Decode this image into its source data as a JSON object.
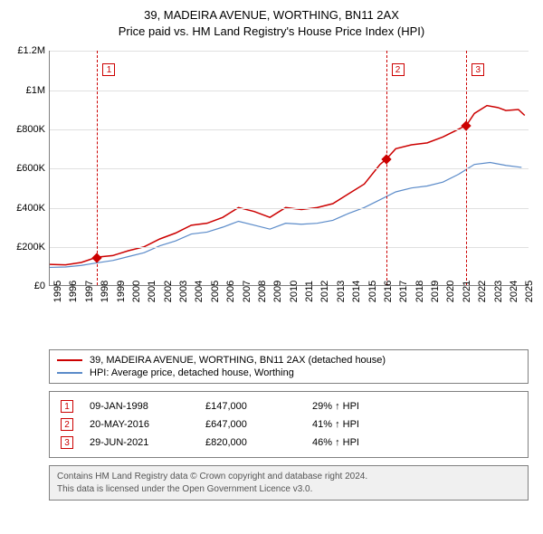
{
  "title": {
    "line1": "39, MADEIRA AVENUE, WORTHING, BN11 2AX",
    "line2": "Price paid vs. HM Land Registry's House Price Index (HPI)"
  },
  "chart": {
    "type": "line",
    "xlim": [
      1995,
      2025.5
    ],
    "ylim": [
      0,
      1200000
    ],
    "ytick_step": 200000,
    "ytick_labels": [
      "£0",
      "£200K",
      "£400K",
      "£600K",
      "£800K",
      "£1M",
      "£1.2M"
    ],
    "xticks": [
      1995,
      1996,
      1997,
      1998,
      1999,
      2000,
      2001,
      2002,
      2003,
      2004,
      2005,
      2006,
      2007,
      2008,
      2009,
      2010,
      2011,
      2012,
      2013,
      2014,
      2015,
      2016,
      2017,
      2018,
      2019,
      2020,
      2021,
      2022,
      2023,
      2024,
      2025
    ],
    "grid_color": "#e0e0e0",
    "axis_color": "#808080",
    "background_color": "#ffffff",
    "label_fontsize": 11,
    "series": [
      {
        "name": "price_paid",
        "label": "39, MADEIRA AVENUE, WORTHING, BN11 2AX (detached house)",
        "color": "#cc0000",
        "line_width": 1.5,
        "points": [
          [
            1995,
            110000
          ],
          [
            1996,
            108000
          ],
          [
            1997,
            120000
          ],
          [
            1998,
            147000
          ],
          [
            1999,
            155000
          ],
          [
            2000,
            180000
          ],
          [
            2001,
            200000
          ],
          [
            2002,
            240000
          ],
          [
            2003,
            270000
          ],
          [
            2004,
            310000
          ],
          [
            2005,
            320000
          ],
          [
            2006,
            350000
          ],
          [
            2007,
            400000
          ],
          [
            2008,
            380000
          ],
          [
            2009,
            350000
          ],
          [
            2010,
            400000
          ],
          [
            2011,
            390000
          ],
          [
            2012,
            400000
          ],
          [
            2013,
            420000
          ],
          [
            2014,
            470000
          ],
          [
            2015,
            520000
          ],
          [
            2016,
            620000
          ],
          [
            2016.4,
            647000
          ],
          [
            2017,
            700000
          ],
          [
            2018,
            720000
          ],
          [
            2019,
            730000
          ],
          [
            2020,
            760000
          ],
          [
            2021,
            800000
          ],
          [
            2021.5,
            820000
          ],
          [
            2022,
            880000
          ],
          [
            2022.8,
            920000
          ],
          [
            2023.5,
            910000
          ],
          [
            2024,
            895000
          ],
          [
            2024.8,
            900000
          ],
          [
            2025.2,
            870000
          ]
        ]
      },
      {
        "name": "hpi",
        "label": "HPI: Average price, detached house, Worthing",
        "color": "#5b8bc9",
        "line_width": 1.2,
        "points": [
          [
            1995,
            95000
          ],
          [
            1996,
            97000
          ],
          [
            1997,
            105000
          ],
          [
            1998,
            118000
          ],
          [
            1999,
            130000
          ],
          [
            2000,
            150000
          ],
          [
            2001,
            170000
          ],
          [
            2002,
            205000
          ],
          [
            2003,
            230000
          ],
          [
            2004,
            265000
          ],
          [
            2005,
            275000
          ],
          [
            2006,
            300000
          ],
          [
            2007,
            330000
          ],
          [
            2008,
            310000
          ],
          [
            2009,
            290000
          ],
          [
            2010,
            320000
          ],
          [
            2011,
            315000
          ],
          [
            2012,
            320000
          ],
          [
            2013,
            335000
          ],
          [
            2014,
            370000
          ],
          [
            2015,
            400000
          ],
          [
            2016,
            440000
          ],
          [
            2017,
            480000
          ],
          [
            2018,
            500000
          ],
          [
            2019,
            510000
          ],
          [
            2020,
            530000
          ],
          [
            2021,
            570000
          ],
          [
            2022,
            620000
          ],
          [
            2023,
            630000
          ],
          [
            2024,
            615000
          ],
          [
            2025,
            605000
          ]
        ]
      }
    ],
    "event_markers": [
      {
        "num": "1",
        "x": 1998.02,
        "y": 147000
      },
      {
        "num": "2",
        "x": 2016.38,
        "y": 647000
      },
      {
        "num": "3",
        "x": 2021.49,
        "y": 820000
      }
    ]
  },
  "legend": {
    "items": [
      {
        "color": "#cc0000",
        "text": "39, MADEIRA AVENUE, WORTHING, BN11 2AX (detached house)"
      },
      {
        "color": "#5b8bc9",
        "text": "HPI: Average price, detached house, Worthing"
      }
    ]
  },
  "events": [
    {
      "num": "1",
      "date": "09-JAN-1998",
      "price": "£147,000",
      "delta": "29% ↑ HPI"
    },
    {
      "num": "2",
      "date": "20-MAY-2016",
      "price": "£647,000",
      "delta": "41% ↑ HPI"
    },
    {
      "num": "3",
      "date": "29-JUN-2021",
      "price": "£820,000",
      "delta": "46% ↑ HPI"
    }
  ],
  "footer": {
    "line1": "Contains HM Land Registry data © Crown copyright and database right 2024.",
    "line2": "This data is licensed under the Open Government Licence v3.0."
  }
}
